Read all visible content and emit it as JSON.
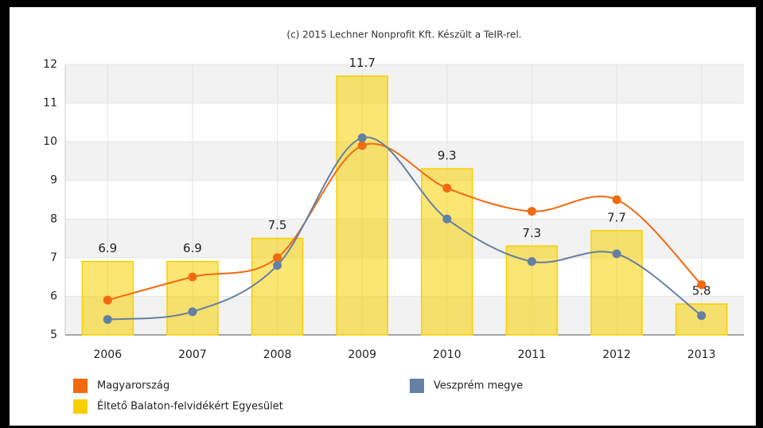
{
  "chart_data": {
    "type": "bar",
    "subtitle": "(c) 2015 Lechner Nonprofit Kft. Készült a TeIR-rel.",
    "categories": [
      "2006",
      "2007",
      "2008",
      "2009",
      "2010",
      "2011",
      "2012",
      "2013"
    ],
    "series": [
      {
        "name": "Magyarország",
        "type": "line",
        "color": "#f26a10",
        "values": [
          5.9,
          6.5,
          7.0,
          9.9,
          8.8,
          8.2,
          8.5,
          6.3
        ]
      },
      {
        "name": "Veszprém megye",
        "type": "line",
        "color": "#6480a3",
        "values": [
          5.4,
          5.6,
          6.8,
          10.1,
          8.0,
          6.9,
          7.1,
          5.5
        ]
      },
      {
        "name": "Éltető Balaton-felvidékért Egyesület",
        "type": "bar",
        "color": "#f8d000",
        "values": [
          6.9,
          6.9,
          7.5,
          11.7,
          9.3,
          7.3,
          7.7,
          5.8
        ]
      }
    ],
    "ylim": [
      5,
      12
    ],
    "yticks": [
      5,
      6,
      7,
      8,
      9,
      10,
      11,
      12
    ],
    "grid": true
  }
}
